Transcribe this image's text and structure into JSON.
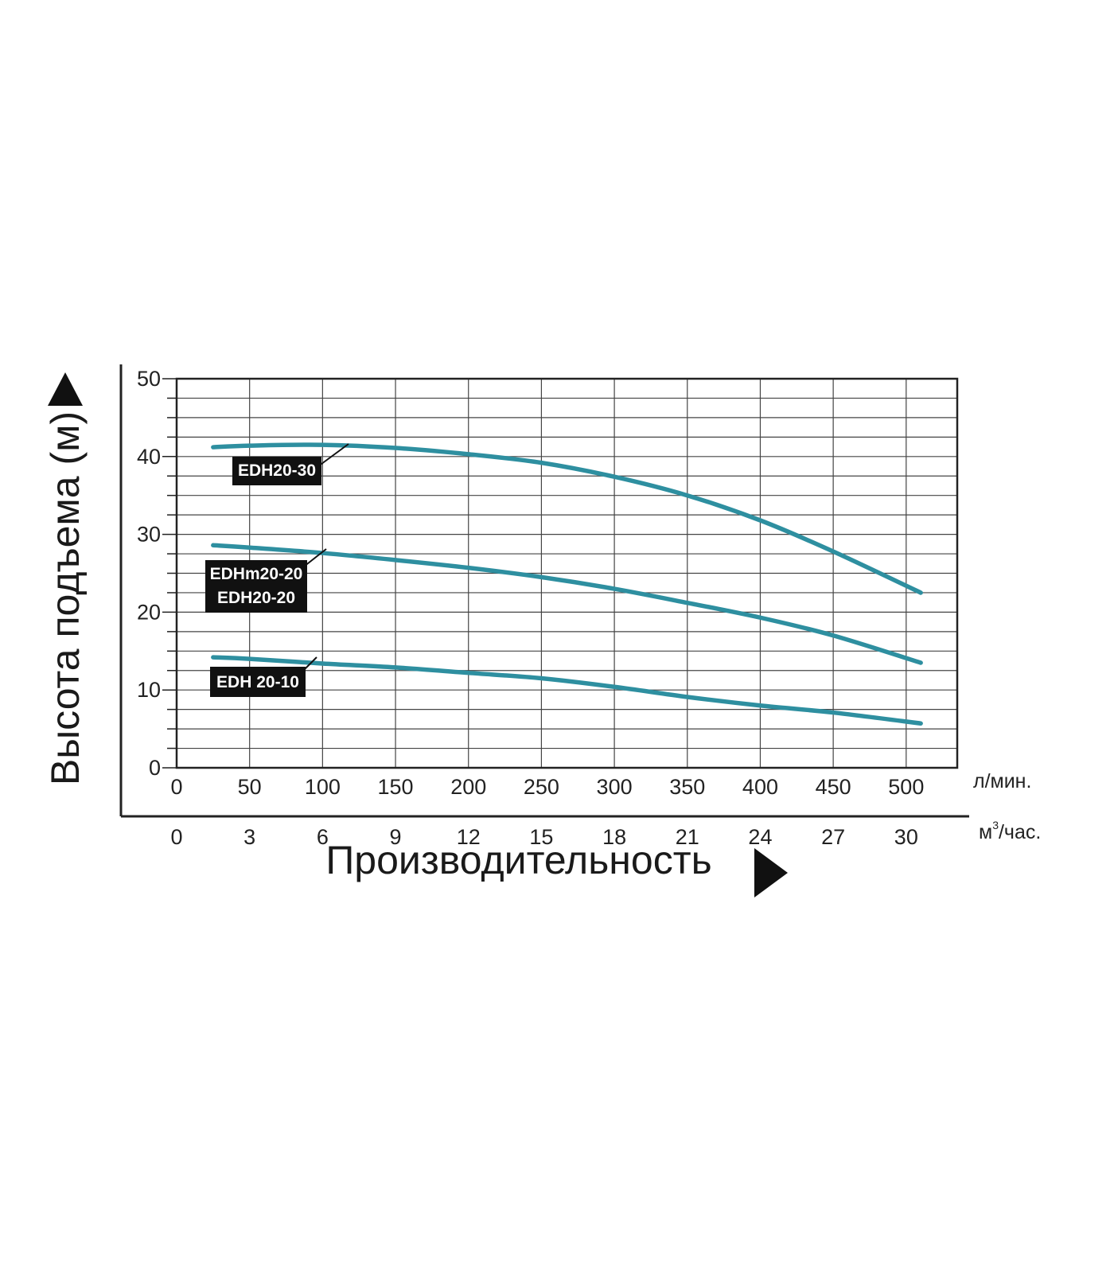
{
  "chart_data": {
    "type": "line",
    "title": "",
    "xlabel": "Производительность",
    "ylabel": "Высота подъема (м)",
    "x_unit_primary": "л/мин.",
    "x_unit_secondary_base": "м",
    "x_unit_secondary_sup": "3",
    "x_unit_secondary_rest": "/час.",
    "xlim": [
      0,
      535
    ],
    "ylim": [
      0,
      50
    ],
    "x_ticks": [
      "0",
      "50",
      "100",
      "150",
      "200",
      "250",
      "300",
      "350",
      "400",
      "450",
      "500"
    ],
    "x_ticks_secondary": [
      "0",
      "3",
      "6",
      "9",
      "12",
      "15",
      "18",
      "21",
      "24",
      "27",
      "30"
    ],
    "y_ticks": [
      "0",
      "10",
      "20",
      "30",
      "40",
      "50"
    ],
    "grid": true,
    "line_color": "#2e8fa0",
    "series": [
      {
        "label_lines": [
          "EDH20-30"
        ],
        "x": [
          25,
          50,
          100,
          150,
          200,
          250,
          300,
          350,
          400,
          450,
          510
        ],
        "y": [
          41.2,
          41.4,
          41.5,
          41.1,
          40.3,
          39.2,
          37.4,
          35.0,
          31.8,
          27.8,
          22.5
        ]
      },
      {
        "label_lines": [
          "EDHm20-20",
          "EDH20-20"
        ],
        "x": [
          25,
          50,
          100,
          150,
          200,
          250,
          300,
          350,
          400,
          450,
          510
        ],
        "y": [
          28.6,
          28.3,
          27.6,
          26.7,
          25.7,
          24.5,
          23.0,
          21.2,
          19.3,
          17.0,
          13.5
        ]
      },
      {
        "label_lines": [
          "EDH 20-10"
        ],
        "x": [
          25,
          50,
          100,
          150,
          200,
          250,
          300,
          350,
          400,
          450,
          510
        ],
        "y": [
          14.2,
          14.0,
          13.4,
          12.9,
          12.2,
          11.5,
          10.4,
          9.1,
          8.0,
          7.1,
          5.7
        ]
      }
    ]
  }
}
